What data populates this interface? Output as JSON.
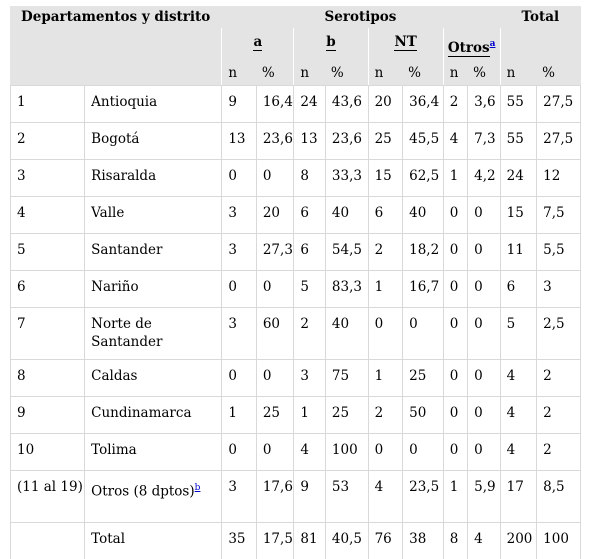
{
  "header": {
    "col_dept": "Departamentos y distrito",
    "col_serotypes": "Serotipos",
    "col_total": "Total",
    "groups": [
      "a",
      "b",
      "NT",
      "Otros"
    ],
    "otros_footnote": "a",
    "sub": [
      "n",
      "%",
      "n",
      "%",
      "n",
      "%",
      "n",
      "%",
      "n",
      "%"
    ]
  },
  "rows": [
    {
      "num": "1",
      "name": "Antioquia",
      "v": [
        "9",
        "16,4",
        "24",
        "43,6",
        "20",
        "36,4",
        "2",
        "3,6",
        "55",
        "27,5"
      ]
    },
    {
      "num": "2",
      "name": "Bogotá",
      "v": [
        "13",
        "23,6",
        "13",
        "23,6",
        "25",
        "45,5",
        "4",
        "7,3",
        "55",
        "27,5"
      ]
    },
    {
      "num": "3",
      "name": "Risaralda",
      "v": [
        "0",
        "0",
        "8",
        "33,3",
        "15",
        "62,5",
        "1",
        "4,2",
        "24",
        "12"
      ]
    },
    {
      "num": "4",
      "name": "Valle",
      "v": [
        "3",
        "20",
        "6",
        "40",
        "6",
        "40",
        "0",
        "0",
        "15",
        "7,5"
      ]
    },
    {
      "num": "5",
      "name": "Santander",
      "v": [
        "3",
        "27,3",
        "6",
        "54,5",
        "2",
        "18,2",
        "0",
        "0",
        "11",
        "5,5"
      ]
    },
    {
      "num": "6",
      "name": "Nariño",
      "v": [
        "0",
        "0",
        "5",
        "83,3",
        "1",
        "16,7",
        "0",
        "0",
        "6",
        "3"
      ]
    },
    {
      "num": "7",
      "name": "Norte de Santander",
      "v": [
        "3",
        "60",
        "2",
        "40",
        "0",
        "0",
        "0",
        "0",
        "5",
        "2,5"
      ]
    },
    {
      "num": "8",
      "name": "Caldas",
      "v": [
        "0",
        "0",
        "3",
        "75",
        "1",
        "25",
        "0",
        "0",
        "4",
        "2"
      ]
    },
    {
      "num": "9",
      "name": "Cundinamarca",
      "v": [
        "1",
        "25",
        "1",
        "25",
        "2",
        "50",
        "0",
        "0",
        "4",
        "2"
      ]
    },
    {
      "num": "10",
      "name": "Tolima",
      "v": [
        "0",
        "0",
        "4",
        "100",
        "0",
        "0",
        "0",
        "0",
        "4",
        "2"
      ]
    },
    {
      "num": "(11 al 19)",
      "name": "Otros (8 dptos)",
      "footnote": "b",
      "v": [
        "3",
        "17,6",
        "9",
        "53",
        "4",
        "23,5",
        "1",
        "5,9",
        "17",
        "8,5"
      ]
    },
    {
      "num": "",
      "name": "Total",
      "v": [
        "35",
        "17,5",
        "81",
        "40,5",
        "76",
        "38",
        "8",
        "4",
        "200",
        "100"
      ]
    }
  ]
}
